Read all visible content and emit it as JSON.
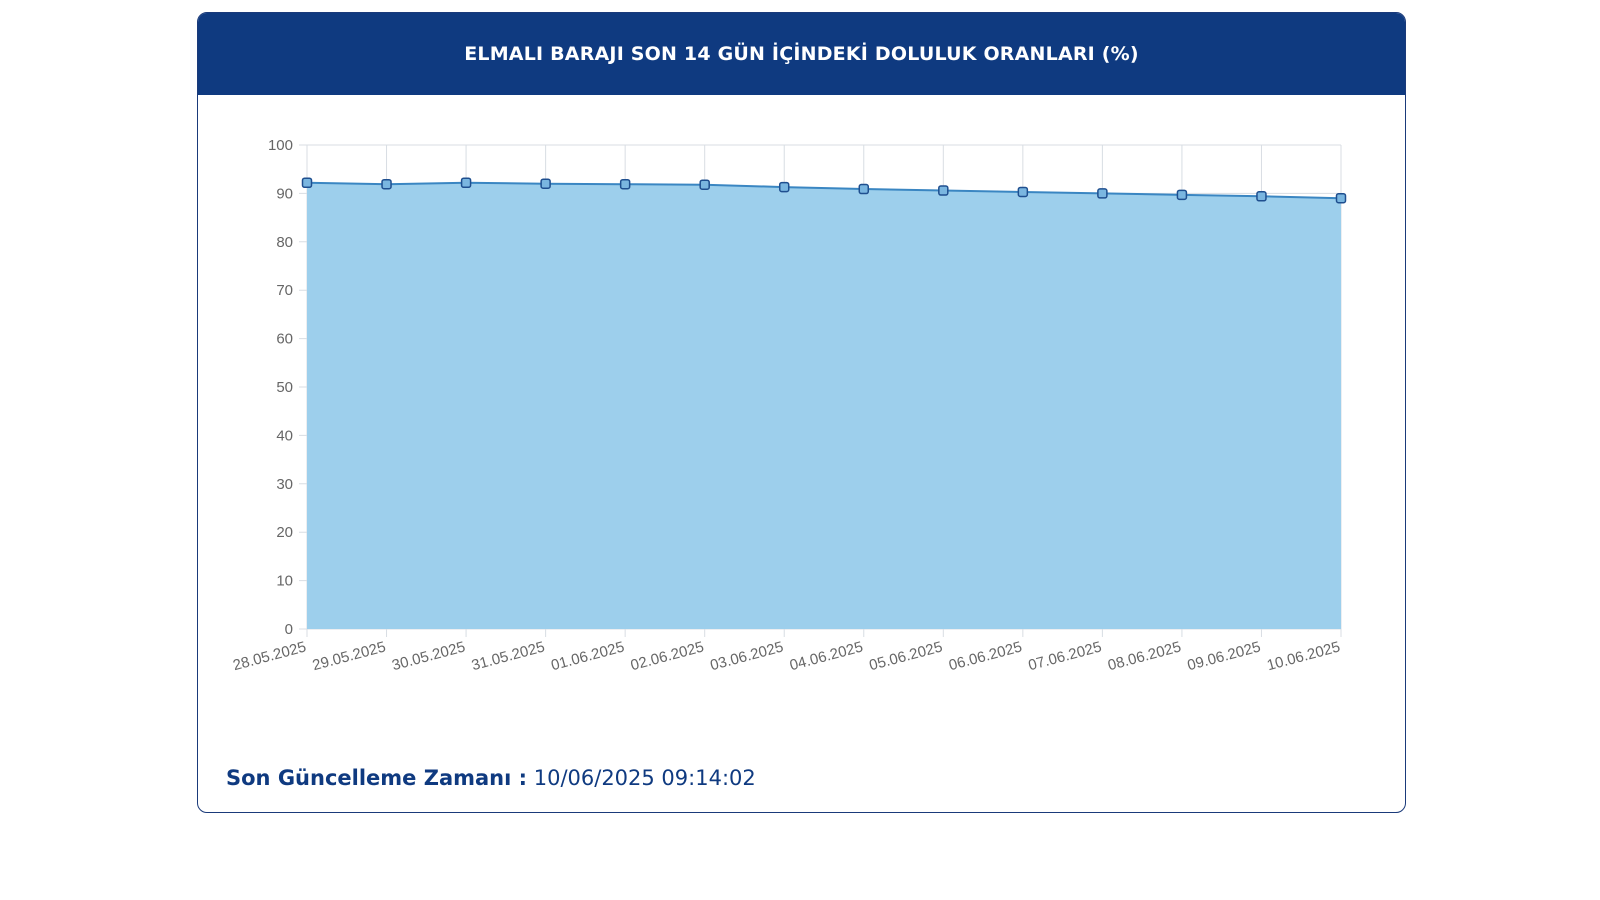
{
  "header": {
    "title": "ELMALI BARAJI SON 14 GÜN İÇİNDEKİ DOLULUK ORANLARI (%)"
  },
  "footer": {
    "label": "Son Güncelleme Zamanı :",
    "value": "10/06/2025 09:14:02"
  },
  "colors": {
    "header_bg": "#0f3a80",
    "area_fill": "#9dcfec",
    "line": "#3a86c2",
    "marker_fill": "#7ab6e0",
    "marker_stroke": "#1f4f8f",
    "grid": "#d8dde3"
  },
  "chart_data": {
    "type": "area",
    "title": "ELMALI BARAJI SON 14 GÜN İÇİNDEKİ DOLULUK ORANLARI (%)",
    "xlabel": "",
    "ylabel": "",
    "ylim": [
      0,
      100
    ],
    "yticks": [
      0,
      10,
      20,
      30,
      40,
      50,
      60,
      70,
      80,
      90,
      100
    ],
    "grid": true,
    "legend": "none",
    "categories": [
      "28.05.2025",
      "29.05.2025",
      "30.05.2025",
      "31.05.2025",
      "01.06.2025",
      "02.06.2025",
      "03.06.2025",
      "04.06.2025",
      "05.06.2025",
      "06.06.2025",
      "07.06.2025",
      "08.06.2025",
      "09.06.2025",
      "10.06.2025"
    ],
    "series": [
      {
        "values": [
          92.2,
          91.9,
          92.2,
          92.0,
          91.9,
          91.8,
          91.3,
          90.9,
          90.6,
          90.3,
          90.0,
          89.7,
          89.4,
          89.0
        ]
      }
    ]
  }
}
